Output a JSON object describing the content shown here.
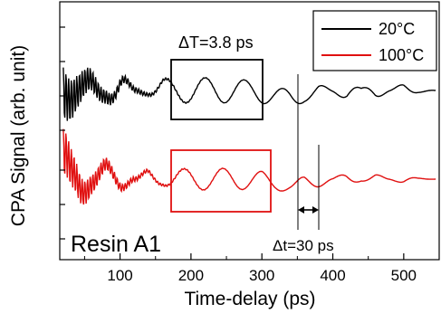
{
  "chart_data": {
    "type": "line",
    "xlabel": "Time-delay (ps)",
    "ylabel": "CPA Signal (arb. unit)",
    "xlim": [
      15,
      550
    ],
    "xticks": [
      100,
      200,
      300,
      400,
      500
    ],
    "xtick_labels": [
      "100",
      "200",
      "300",
      "400",
      "500"
    ],
    "grid": false,
    "legend_position": "top-right",
    "series": [
      {
        "name": "20°C",
        "color": "#000000",
        "x": [
          20,
          30,
          45,
          60,
          80,
          100,
          120,
          140,
          160,
          180,
          200,
          220,
          240,
          260,
          280,
          300,
          320,
          340,
          360,
          380,
          400,
          420,
          440,
          460,
          480,
          500,
          520,
          545
        ],
        "y": [
          0.2,
          -0.5,
          0.4,
          -0.6,
          0.3,
          -0.8,
          0.1,
          -0.2,
          0.55,
          -0.55,
          0.6,
          -0.6,
          0.6,
          -0.55,
          0.5,
          -0.5,
          0.45,
          -0.45,
          -0.25,
          -0.35,
          0.15,
          -0.4,
          0.1,
          -0.35,
          0.1,
          -0.3,
          0.1,
          0.0
        ]
      },
      {
        "name": "100°C",
        "color": "#e01010",
        "x": [
          20,
          30,
          45,
          60,
          80,
          100,
          120,
          140,
          160,
          180,
          200,
          220,
          240,
          260,
          280,
          300,
          320,
          340,
          360,
          380,
          400,
          420,
          440,
          460,
          480,
          500,
          520,
          545
        ],
        "y": [
          1.6,
          -0.8,
          0.9,
          -0.4,
          0.8,
          -0.6,
          0.0,
          -0.5,
          0.3,
          -0.5,
          0.55,
          -0.55,
          0.55,
          -0.55,
          0.5,
          -0.5,
          0.3,
          -0.2,
          0.45,
          -0.3,
          0.1,
          -0.3,
          0.1,
          -0.25,
          0.05,
          -0.2,
          0.05,
          0.0
        ]
      }
    ],
    "annotations": {
      "period": "ΔT=3.8 ps",
      "shift": "Δt=30 ps",
      "sample": "Resin A1"
    }
  }
}
